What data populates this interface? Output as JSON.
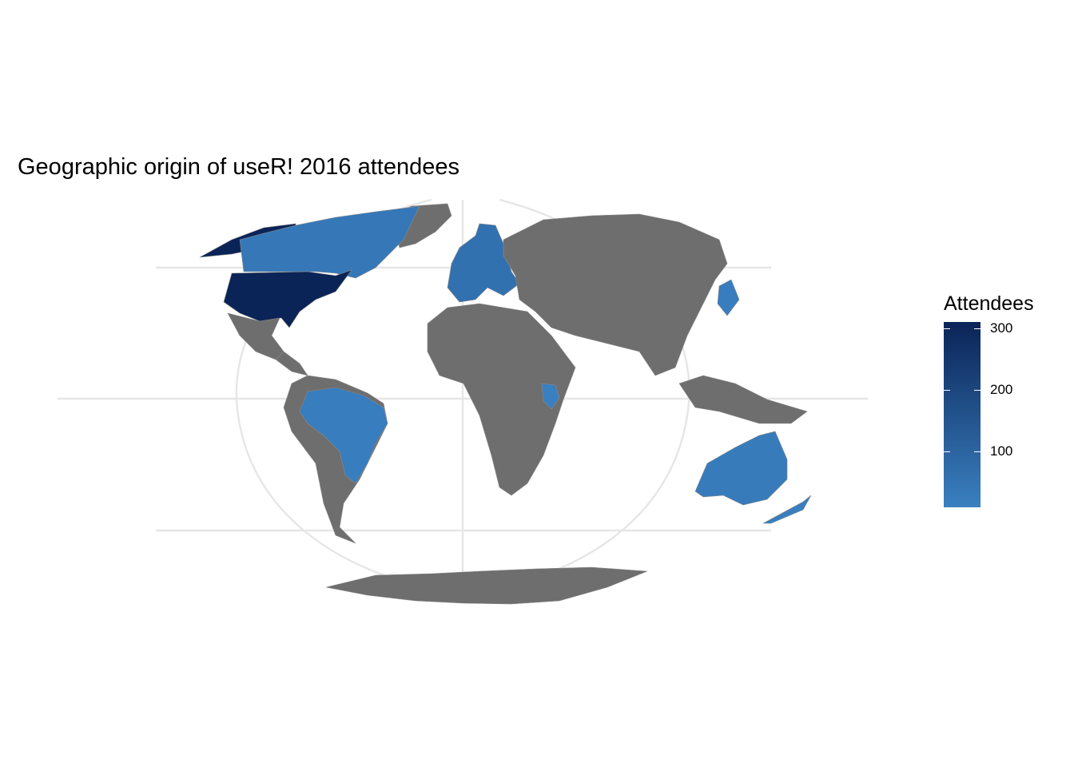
{
  "title": "Geographic origin of useR! 2016 attendees",
  "legend": {
    "title": "Attendees",
    "min": 10,
    "max": 310,
    "ticks": [
      100,
      200,
      300
    ],
    "tick_labels": [
      "100",
      "200",
      "300"
    ],
    "color_low": "#3a80c0",
    "color_high": "#0b2457"
  },
  "colors": {
    "no_data": "#6e6e6e",
    "graticule": "#e6e6e6",
    "country_border": "#8a8a8a"
  },
  "highlighted_regions": [
    {
      "name": "United States",
      "attendees": 310
    },
    {
      "name": "Canada",
      "attendees": 35
    },
    {
      "name": "Brazil",
      "attendees": 20
    },
    {
      "name": "Australia",
      "attendees": 25
    },
    {
      "name": "New Zealand",
      "attendees": 15
    },
    {
      "name": "Europe",
      "attendees": 60
    },
    {
      "name": "Kenya",
      "attendees": 12
    },
    {
      "name": "Japan",
      "attendees": 20
    }
  ]
}
